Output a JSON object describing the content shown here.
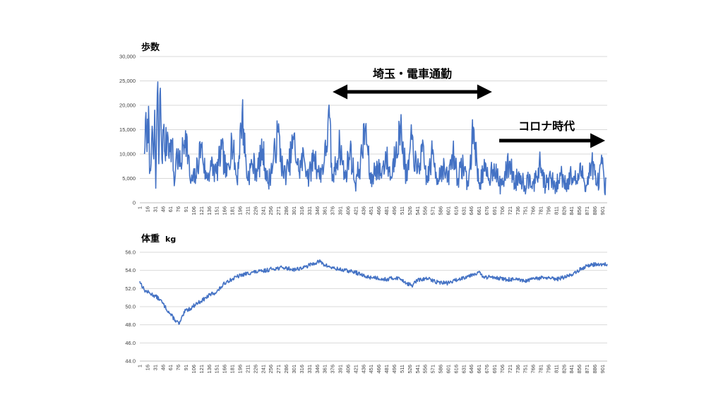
{
  "colors": {
    "series": "#4472c4",
    "arrow": "#000000"
  },
  "chart_data": [
    {
      "type": "line",
      "title": "歩数",
      "ylim": [
        0,
        30000
      ],
      "yticks": [
        "0",
        "5,000",
        "10,000",
        "15,000",
        "20,000",
        "25,000",
        "30,000"
      ],
      "ytick_values": [
        0,
        5000,
        10000,
        15000,
        20000,
        25000,
        30000
      ],
      "x_range": [
        1,
        910
      ],
      "xtick_values": [
        1,
        16,
        31,
        46,
        61,
        76,
        91,
        106,
        121,
        136,
        151,
        166,
        181,
        196,
        211,
        226,
        241,
        256,
        271,
        286,
        301,
        316,
        331,
        346,
        361,
        376,
        391,
        406,
        421,
        436,
        451,
        466,
        481,
        496,
        511,
        526,
        541,
        556,
        571,
        586,
        601,
        616,
        631,
        646,
        661,
        676,
        691,
        706,
        721,
        736,
        751,
        766,
        781,
        796,
        811,
        826,
        841,
        856,
        871,
        886,
        901
      ],
      "grid": "horizontal",
      "series": [
        {
          "anchors": [
            [
              10,
              10000
            ],
            [
              12,
              17000
            ],
            [
              15,
              10500
            ],
            [
              18,
              19800
            ],
            [
              20,
              6000
            ],
            [
              24,
              13000
            ],
            [
              28,
              9000
            ],
            [
              30,
              19000
            ],
            [
              32,
              3000
            ],
            [
              36,
              24800
            ],
            [
              38,
              8000
            ],
            [
              41,
              23500
            ],
            [
              44,
              9000
            ],
            [
              47,
              15000
            ],
            [
              50,
              10000
            ],
            [
              55,
              14500
            ],
            [
              60,
              10500
            ],
            [
              64,
              12500
            ],
            [
              68,
              3500
            ],
            [
              72,
              10000
            ],
            [
              80,
              7500
            ],
            [
              90,
              14800
            ],
            [
              100,
              4000
            ],
            [
              110,
              5500
            ],
            [
              120,
              12000
            ],
            [
              130,
              5000
            ],
            [
              140,
              7500
            ],
            [
              150,
              6000
            ],
            [
              160,
              11000
            ],
            [
              170,
              5500
            ],
            [
              180,
              13000
            ],
            [
              190,
              4500
            ],
            [
              200,
              18400
            ],
            [
              210,
              5000
            ],
            [
              220,
              8000
            ],
            [
              230,
              6500
            ],
            [
              240,
              11000
            ],
            [
              250,
              4000
            ],
            [
              260,
              8000
            ],
            [
              270,
              14500
            ],
            [
              280,
              5500
            ],
            [
              290,
              7000
            ],
            [
              300,
              13000
            ],
            [
              310,
              6500
            ],
            [
              320,
              9500
            ],
            [
              330,
              5000
            ],
            [
              340,
              10000
            ],
            [
              350,
              5500
            ],
            [
              360,
              8500
            ],
            [
              370,
              17500
            ],
            [
              375,
              4500
            ],
            [
              380,
              6500
            ],
            [
              390,
              12000
            ],
            [
              400,
              5000
            ],
            [
              410,
              11000
            ],
            [
              420,
              4000
            ],
            [
              430,
              8000
            ],
            [
              440,
              15500
            ],
            [
              450,
              4000
            ],
            [
              460,
              7500
            ],
            [
              470,
              6000
            ],
            [
              480,
              9500
            ],
            [
              490,
              5000
            ],
            [
              500,
              12500
            ],
            [
              510,
              14500
            ],
            [
              520,
              4500
            ],
            [
              530,
              13000
            ],
            [
              540,
              6000
            ],
            [
              550,
              10500
            ],
            [
              560,
              4500
            ],
            [
              570,
              10000
            ],
            [
              580,
              5000
            ],
            [
              590,
              7500
            ],
            [
              600,
              4500
            ],
            [
              610,
              10500
            ],
            [
              620,
              5000
            ],
            [
              630,
              8000
            ],
            [
              640,
              3500
            ],
            [
              650,
              15500
            ],
            [
              660,
              4000
            ],
            [
              670,
              6500
            ],
            [
              680,
              5000
            ],
            [
              690,
              8000
            ],
            [
              700,
              3500
            ],
            [
              710,
              5000
            ],
            [
              720,
              8500
            ],
            [
              730,
              4000
            ],
            [
              740,
              6000
            ],
            [
              750,
              3500
            ],
            [
              760,
              5500
            ],
            [
              770,
              4000
            ],
            [
              780,
              8000
            ],
            [
              790,
              3500
            ],
            [
              800,
              5000
            ],
            [
              810,
              3000
            ],
            [
              820,
              6000
            ],
            [
              830,
              4000
            ],
            [
              840,
              5500
            ],
            [
              850,
              4500
            ],
            [
              860,
              6500
            ],
            [
              870,
              3500
            ],
            [
              880,
              8500
            ],
            [
              890,
              3500
            ],
            [
              900,
              8000
            ],
            [
              905,
              2000
            ],
            [
              908,
              5000
            ]
          ]
        }
      ]
    },
    {
      "type": "line",
      "title": "体重",
      "unit": "kg",
      "ylim": [
        44,
        56
      ],
      "yticks": [
        "44.0",
        "46.0",
        "48.0",
        "50.0",
        "52.0",
        "54.0",
        "56.0"
      ],
      "ytick_values": [
        44,
        46,
        48,
        50,
        52,
        54,
        56
      ],
      "x_range": [
        1,
        910
      ],
      "xtick_values": [
        1,
        16,
        31,
        46,
        61,
        76,
        91,
        106,
        121,
        136,
        151,
        166,
        181,
        196,
        211,
        226,
        241,
        256,
        271,
        286,
        301,
        316,
        331,
        346,
        361,
        376,
        391,
        406,
        421,
        436,
        451,
        466,
        481,
        496,
        511,
        526,
        541,
        556,
        571,
        586,
        601,
        616,
        631,
        646,
        661,
        676,
        691,
        706,
        721,
        736,
        751,
        766,
        781,
        796,
        811,
        826,
        841,
        856,
        871,
        886,
        901
      ],
      "grid": "horizontal",
      "series": [
        {
          "anchors": [
            [
              1,
              52.8
            ],
            [
              10,
              51.8
            ],
            [
              20,
              51.5
            ],
            [
              30,
              51.2
            ],
            [
              40,
              50.8
            ],
            [
              50,
              50.0
            ],
            [
              60,
              49.2
            ],
            [
              70,
              48.5
            ],
            [
              78,
              48.1
            ],
            [
              85,
              49.0
            ],
            [
              90,
              49.6
            ],
            [
              100,
              49.8
            ],
            [
              110,
              50.3
            ],
            [
              120,
              50.6
            ],
            [
              130,
              51.0
            ],
            [
              140,
              51.4
            ],
            [
              150,
              51.6
            ],
            [
              160,
              52.2
            ],
            [
              170,
              52.8
            ],
            [
              180,
              53.0
            ],
            [
              190,
              53.3
            ],
            [
              200,
              53.5
            ],
            [
              220,
              53.8
            ],
            [
              240,
              53.9
            ],
            [
              260,
              54.2
            ],
            [
              280,
              54.3
            ],
            [
              300,
              54.1
            ],
            [
              320,
              54.3
            ],
            [
              340,
              54.8
            ],
            [
              350,
              55.0
            ],
            [
              360,
              54.6
            ],
            [
              380,
              54.2
            ],
            [
              400,
              54.0
            ],
            [
              420,
              53.8
            ],
            [
              440,
              53.3
            ],
            [
              460,
              53.2
            ],
            [
              480,
              53.0
            ],
            [
              500,
              53.2
            ],
            [
              510,
              53.0
            ],
            [
              520,
              52.6
            ],
            [
              530,
              52.3
            ],
            [
              540,
              52.9
            ],
            [
              560,
              53.1
            ],
            [
              580,
              52.7
            ],
            [
              600,
              52.6
            ],
            [
              620,
              53.0
            ],
            [
              640,
              53.4
            ],
            [
              660,
              53.8
            ],
            [
              670,
              53.2
            ],
            [
              690,
              53.3
            ],
            [
              710,
              53.0
            ],
            [
              730,
              53.0
            ],
            [
              750,
              52.8
            ],
            [
              770,
              53.1
            ],
            [
              790,
              53.2
            ],
            [
              810,
              53.0
            ],
            [
              830,
              53.3
            ],
            [
              850,
              53.8
            ],
            [
              860,
              54.2
            ],
            [
              870,
              54.5
            ],
            [
              880,
              54.6
            ],
            [
              890,
              54.7
            ],
            [
              900,
              54.6
            ],
            [
              910,
              54.7
            ]
          ]
        }
      ]
    }
  ],
  "annotations": {
    "commute": {
      "text": "埼玉・電車通勤",
      "from_x": 376,
      "to_x": 686
    },
    "corona": {
      "text": "コロナ時代",
      "from_x": 700,
      "to_x": 906
    }
  }
}
